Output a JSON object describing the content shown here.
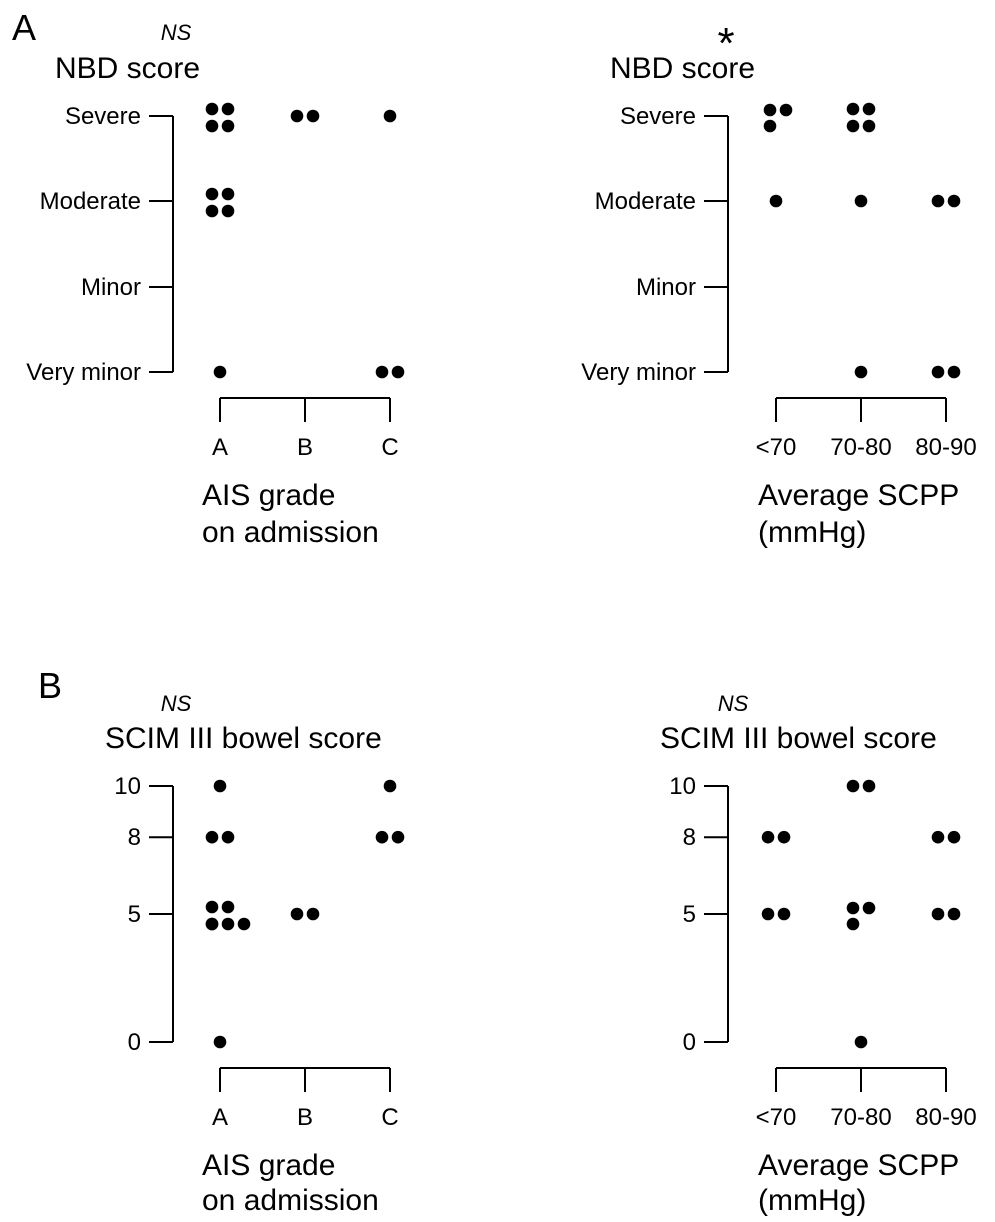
{
  "figure": {
    "panel_letters": [
      "A",
      "B"
    ]
  },
  "colors": {
    "ink": "#000000",
    "background": "#ffffff"
  },
  "chart_data": [
    {
      "type": "scatter",
      "panel": "A",
      "significance": "NS",
      "ylabel": "NBD score",
      "y_ticks": [
        "Very minor",
        "Minor",
        "Moderate",
        "Severe"
      ],
      "y_tick_values": [
        0,
        1,
        2,
        3
      ],
      "categories": [
        "A",
        "B",
        "C"
      ],
      "xlabel": [
        "AIS grade",
        "on admission"
      ],
      "points": [
        {
          "x": "A",
          "y": 3,
          "count": 4
        },
        {
          "x": "B",
          "y": 3,
          "count": 2
        },
        {
          "x": "C",
          "y": 3,
          "count": 1
        },
        {
          "x": "A",
          "y": 2,
          "count": 4
        },
        {
          "x": "A",
          "y": 0,
          "count": 1
        },
        {
          "x": "C",
          "y": 0,
          "count": 2
        }
      ]
    },
    {
      "type": "scatter",
      "panel": "A",
      "significance": "*",
      "ylabel": "NBD score",
      "y_ticks": [
        "Very minor",
        "Minor",
        "Moderate",
        "Severe"
      ],
      "y_tick_values": [
        0,
        1,
        2,
        3
      ],
      "categories": [
        "<70",
        "70-80",
        "80-90"
      ],
      "xlabel": [
        "Average SCPP",
        "(mmHg)"
      ],
      "points": [
        {
          "x": "<70",
          "y": 3,
          "count": 3
        },
        {
          "x": "70-80",
          "y": 3,
          "count": 4
        },
        {
          "x": "<70",
          "y": 2,
          "count": 1
        },
        {
          "x": "70-80",
          "y": 2,
          "count": 1
        },
        {
          "x": "80-90",
          "y": 2,
          "count": 2
        },
        {
          "x": "70-80",
          "y": 0,
          "count": 1
        },
        {
          "x": "80-90",
          "y": 0,
          "count": 2
        }
      ]
    },
    {
      "type": "scatter",
      "panel": "B",
      "significance": "NS",
      "ylabel": "SCIM III bowel score",
      "y_ticks": [
        "0",
        "5",
        "8",
        "10"
      ],
      "y_tick_values": [
        0,
        5,
        8,
        10
      ],
      "categories": [
        "A",
        "B",
        "C"
      ],
      "xlabel": [
        "AIS grade",
        "on admission"
      ],
      "points": [
        {
          "x": "A",
          "y": 10,
          "count": 1
        },
        {
          "x": "C",
          "y": 10,
          "count": 1
        },
        {
          "x": "A",
          "y": 8,
          "count": 2
        },
        {
          "x": "C",
          "y": 8,
          "count": 2
        },
        {
          "x": "A",
          "y": 5,
          "count": 6
        },
        {
          "x": "B",
          "y": 5,
          "count": 2
        },
        {
          "x": "A",
          "y": 0,
          "count": 1
        }
      ]
    },
    {
      "type": "scatter",
      "panel": "B",
      "significance": "NS",
      "ylabel": "SCIM III bowel score",
      "y_ticks": [
        "0",
        "5",
        "8",
        "10"
      ],
      "y_tick_values": [
        0,
        5,
        8,
        10
      ],
      "categories": [
        "<70",
        "70-80",
        "80-90"
      ],
      "xlabel": [
        "Average SCPP",
        "(mmHg)"
      ],
      "points": [
        {
          "x": "70-80",
          "y": 10,
          "count": 2
        },
        {
          "x": "<70",
          "y": 8,
          "count": 2
        },
        {
          "x": "80-90",
          "y": 8,
          "count": 2
        },
        {
          "x": "<70",
          "y": 5,
          "count": 2
        },
        {
          "x": "70-80",
          "y": 5,
          "count": 3
        },
        {
          "x": "80-90",
          "y": 5,
          "count": 2
        },
        {
          "x": "70-80",
          "y": 0,
          "count": 1
        }
      ]
    }
  ]
}
